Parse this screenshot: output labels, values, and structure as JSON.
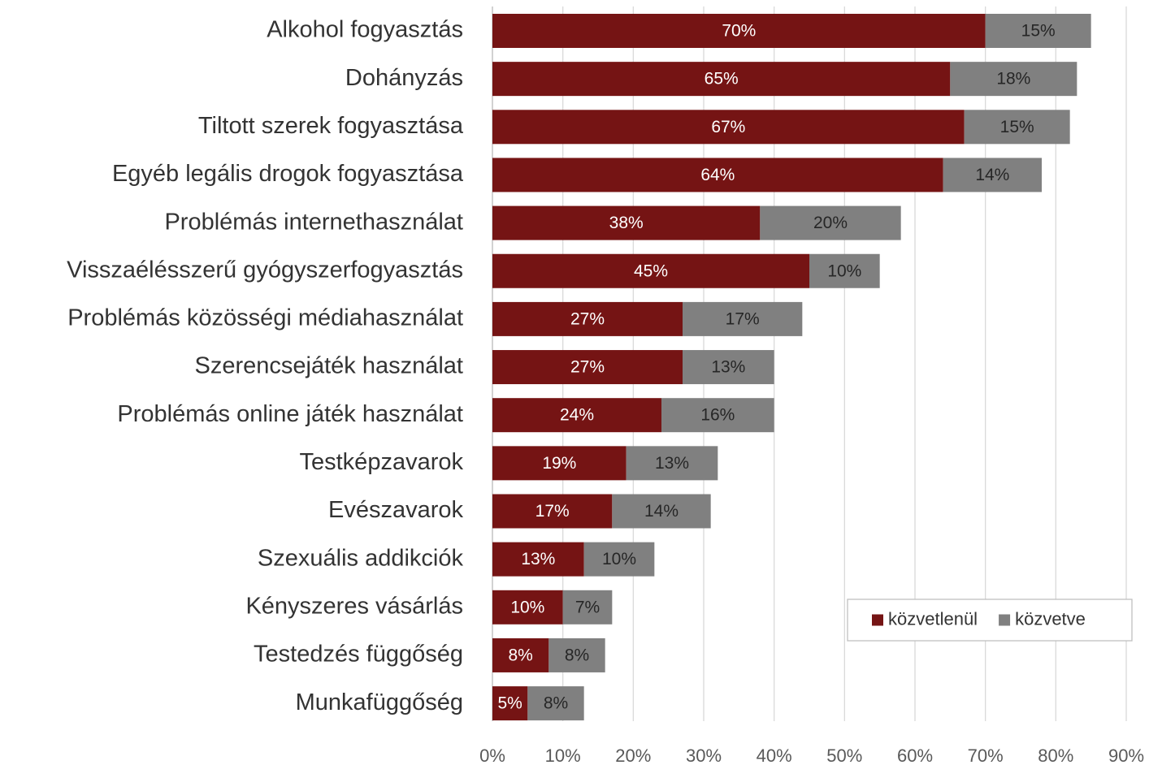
{
  "chart_data": {
    "type": "stacked_barh",
    "categories": [
      "Alkohol fogyasztás",
      "Dohányzás",
      "Tiltott szerek fogyasztása",
      "Egyéb legális drogok fogyasztása",
      "Problémás internethasználat",
      "Visszaélésszerű gyógyszerfogyasztás",
      "Problémás közösségi médiahasználat",
      "Szerencsejáték használat",
      "Problémás online játék használat",
      "Testképzavarok",
      "Evészavarok",
      "Szexuális addikciók",
      "Kényszeres vásárlás",
      "Testedzés függőség",
      "Munkafüggőség"
    ],
    "series": [
      {
        "name": "közvetlenül",
        "color": "#751414",
        "label_color": "#ffffff",
        "values": [
          70,
          65,
          67,
          64,
          38,
          45,
          27,
          27,
          24,
          19,
          17,
          13,
          10,
          8,
          5
        ],
        "value_labels": [
          "70%",
          "65%",
          "67%",
          "64%",
          "38%",
          "45%",
          "27%",
          "27%",
          "24%",
          "19%",
          "17%",
          "13%",
          "10%",
          "8%",
          "5%"
        ]
      },
      {
        "name": "közvetve",
        "color": "#808080",
        "label_color": "#262626",
        "values": [
          15,
          18,
          15,
          14,
          20,
          10,
          17,
          13,
          16,
          13,
          14,
          10,
          7,
          8,
          8
        ],
        "value_labels": [
          "15%",
          "18%",
          "15%",
          "14%",
          "20%",
          "10%",
          "17%",
          "13%",
          "16%",
          "13%",
          "14%",
          "10%",
          "7%",
          "8%",
          "8%"
        ]
      }
    ],
    "xlim": [
      0,
      90
    ],
    "xticks": [
      {
        "value": 0,
        "label": "0%"
      },
      {
        "value": 10,
        "label": "10%"
      },
      {
        "value": 20,
        "label": "20%"
      },
      {
        "value": 30,
        "label": "30%"
      },
      {
        "value": 40,
        "label": "40%"
      },
      {
        "value": 50,
        "label": "50%"
      },
      {
        "value": 60,
        "label": "60%"
      },
      {
        "value": 70,
        "label": "70%"
      },
      {
        "value": 80,
        "label": "80%"
      },
      {
        "value": 90,
        "label": "90%"
      }
    ],
    "grid": true,
    "legend": "lower right"
  }
}
